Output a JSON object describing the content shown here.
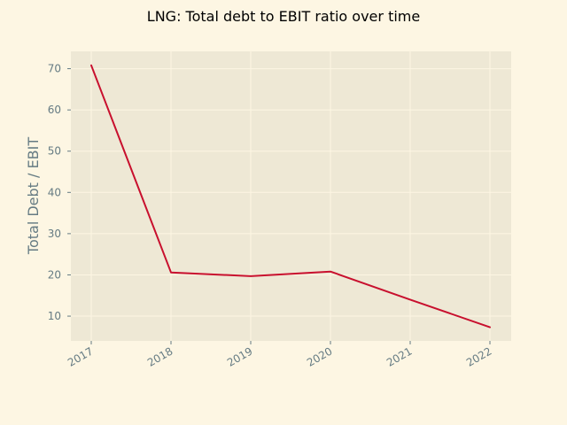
{
  "chart_data": {
    "type": "line",
    "title": "LNG: Total debt to EBIT ratio over time",
    "xlabel": "",
    "ylabel": "Total Debt / EBIT",
    "x": [
      "2017",
      "2018",
      "2019",
      "2020",
      "2021",
      "2022"
    ],
    "series": [
      {
        "values": [
          70.8,
          20.6,
          19.7,
          20.8,
          14.0,
          7.3
        ]
      }
    ],
    "ylim": [
      4.0,
      74.2
    ],
    "yticks": [
      "10",
      "20",
      "30",
      "40",
      "50",
      "60",
      "70"
    ],
    "grid": true,
    "legend": "none",
    "colors": {
      "background": "#fdf6e3",
      "plot_area": "#eee8d5",
      "line": "#c8102e",
      "grid": "#fdf6e3",
      "tick": "#657b83"
    }
  }
}
